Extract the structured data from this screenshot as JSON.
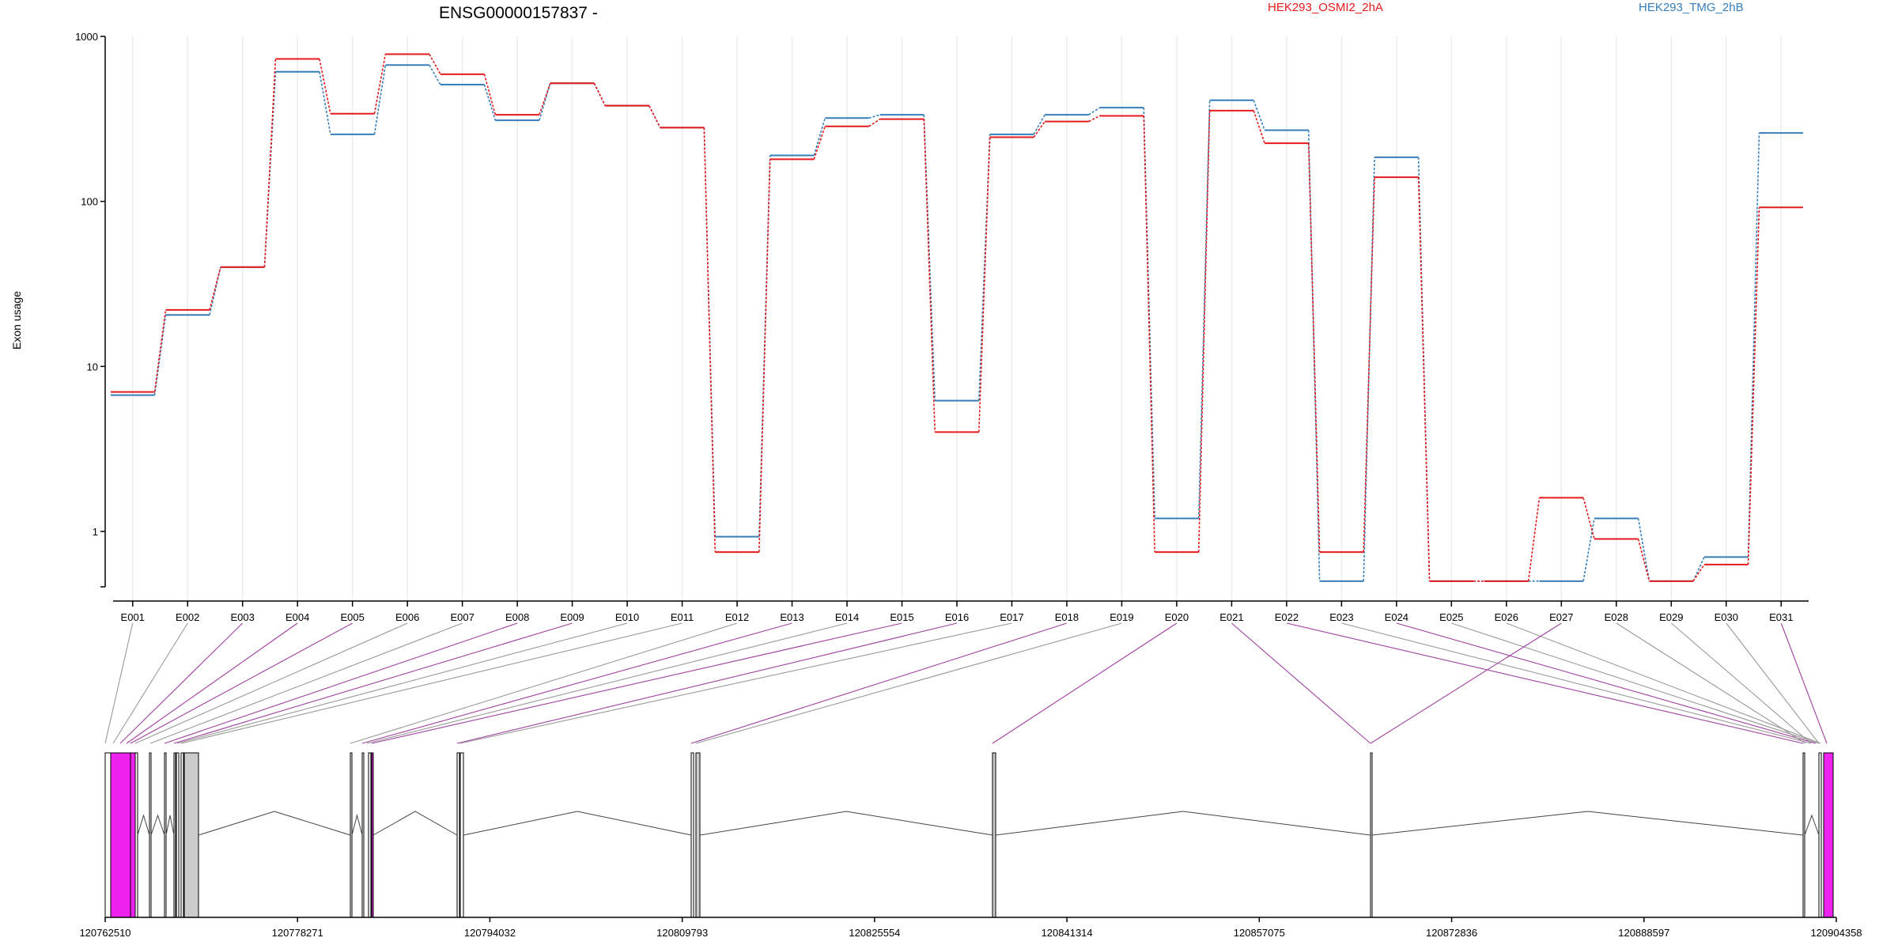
{
  "chart_data": {
    "type": "line",
    "title": "ENSG00000157837 -",
    "ylabel": "Exon usage",
    "y_scale": "log",
    "y_ticks": [
      1,
      10,
      100,
      1000
    ],
    "y_tick_labels": [
      "1",
      "10",
      "100",
      "1000"
    ],
    "categories": [
      "E001",
      "E002",
      "E003",
      "E004",
      "E005",
      "E006",
      "E007",
      "E008",
      "E009",
      "E010",
      "E011",
      "E012",
      "E013",
      "E014",
      "E015",
      "E016",
      "E017",
      "E018",
      "E019",
      "E020",
      "E021",
      "E022",
      "E023",
      "E024",
      "E025",
      "E026",
      "E027",
      "E028",
      "E029",
      "E030",
      "E031"
    ],
    "series": [
      {
        "name": "HEK293_OSMI2_2hA",
        "color": "#e41a1c",
        "values": [
          7.0,
          22,
          40,
          730,
          340,
          780,
          590,
          335,
          520,
          380,
          280,
          0.75,
          180,
          285,
          315,
          4.0,
          245,
          305,
          330,
          0.75,
          355,
          225,
          0.75,
          140,
          0.5,
          0.5,
          1.6,
          0.9,
          0.5,
          0.63,
          92
        ]
      },
      {
        "name": "HEK293_TMG_2hB",
        "color": "#377eb8",
        "values": [
          6.7,
          20.5,
          40,
          610,
          255,
          670,
          510,
          310,
          520,
          380,
          280,
          0.93,
          190,
          320,
          335,
          6.2,
          255,
          335,
          370,
          1.2,
          410,
          270,
          0.5,
          185,
          0.5,
          0.5,
          0.5,
          1.2,
          0.5,
          0.7,
          260
        ]
      }
    ],
    "grid": true,
    "legend_placement": "top"
  },
  "gene_model": {
    "coordinate_ticks": [
      "120762510",
      "120778271",
      "120794032",
      "120809793",
      "120825554",
      "120841314",
      "120857075",
      "120872836",
      "120888597",
      "120904358"
    ],
    "coordinate_range": [
      120762510,
      120904358
    ],
    "exon_colors": {
      "highlight": "#ee22ee",
      "default": "#cccccc",
      "line": "#000000"
    },
    "connector_colors": {
      "significant": "#a040a0",
      "normal": "#999999"
    }
  }
}
